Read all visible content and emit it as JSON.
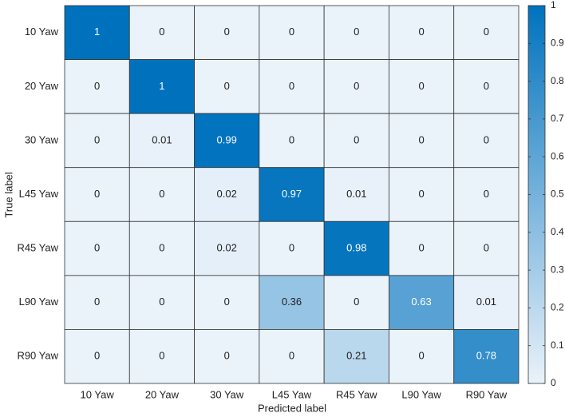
{
  "chart_data": {
    "type": "heatmap",
    "x_label": "Predicted label",
    "y_label": "True label",
    "x_categories": [
      "10 Yaw",
      "20 Yaw",
      "30 Yaw",
      "L45 Yaw",
      "R45 Yaw",
      "L90 Yaw",
      "R90 Yaw"
    ],
    "y_categories": [
      "10 Yaw",
      "20 Yaw",
      "30 Yaw",
      "L45 Yaw",
      "R45 Yaw",
      "L90 Yaw",
      "R90 Yaw"
    ],
    "z": [
      [
        1,
        0,
        0,
        0,
        0,
        0,
        0
      ],
      [
        0,
        1,
        0,
        0,
        0,
        0,
        0
      ],
      [
        0,
        0.01,
        0.99,
        0,
        0,
        0,
        0
      ],
      [
        0,
        0,
        0.02,
        0.97,
        0.01,
        0,
        0
      ],
      [
        0,
        0,
        0.02,
        0,
        0.98,
        0,
        0
      ],
      [
        0,
        0,
        0,
        0.36,
        0,
        0.63,
        0.01
      ],
      [
        0,
        0,
        0,
        0,
        0.21,
        0,
        0.78
      ]
    ],
    "colormap": [
      "#eaf2fa",
      "#0072bd"
    ],
    "zlim": [
      0,
      1
    ],
    "zticks": [
      0,
      0.1,
      0.2,
      0.3,
      0.4,
      0.5,
      0.6,
      0.7,
      0.8,
      0.9,
      1
    ]
  }
}
